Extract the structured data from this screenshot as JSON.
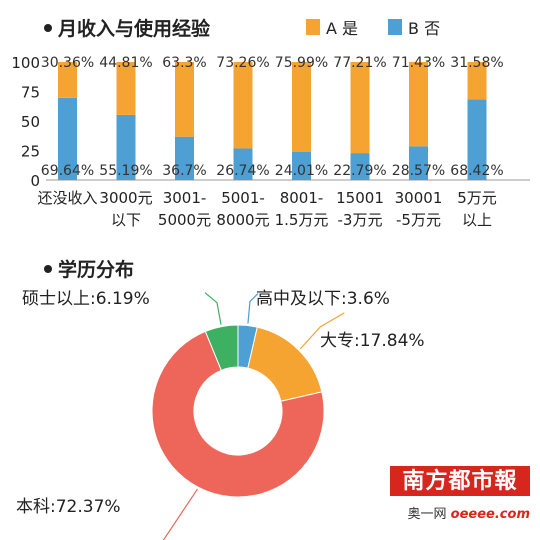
{
  "chart_data": [
    {
      "type": "bar",
      "stacked": true,
      "title": "月收入与使用经验",
      "categories": [
        "还没收入",
        "3000元\n以下",
        "3001-\n5000元",
        "5001-\n8000元",
        "8001-\n1.5万元",
        "15001\n-3万元",
        "30001\n-5万元",
        "5万元\n以上"
      ],
      "series": [
        {
          "name": "B 否",
          "color": "#4d9fd4",
          "values": [
            69.64,
            55.19,
            36.7,
            26.74,
            24.01,
            22.79,
            28.57,
            68.42
          ],
          "labels": [
            "69.64%",
            "55.19%",
            "36.7%",
            "26.74%",
            "24.01%",
            "22.79%",
            "28.57%",
            "68.42%"
          ]
        },
        {
          "name": "A 是",
          "color": "#f5a431",
          "values": [
            30.36,
            44.81,
            63.3,
            73.26,
            75.99,
            77.21,
            71.43,
            31.58
          ],
          "labels": [
            "30.36%",
            "44.81%",
            "63.3%",
            "73.26%",
            "75.99%",
            "77.21%",
            "71.43%",
            "31.58%"
          ]
        }
      ],
      "y_ticks": [
        "100",
        "75",
        "50",
        "25",
        "0"
      ],
      "ylim": [
        0,
        100
      ],
      "legend": "top-right"
    },
    {
      "type": "pie",
      "title": "学历分布",
      "slices": [
        {
          "label": "高中及以下",
          "value": 3.6,
          "text": "高中及以下:3.6%",
          "color": "#4d9fd4"
        },
        {
          "label": "大专",
          "value": 17.84,
          "text": "大专:17.84%",
          "color": "#f5a431"
        },
        {
          "label": "本科",
          "value": 72.37,
          "text": "本科:72.37%",
          "color": "#ee6659"
        },
        {
          "label": "硕士以上",
          "value": 6.19,
          "text": "硕士以上:6.19%",
          "color": "#3db062"
        }
      ]
    }
  ],
  "watermark": {
    "logo_text": "南方都市報",
    "sub_text": "奥一网",
    "site": "oeeee.com"
  }
}
